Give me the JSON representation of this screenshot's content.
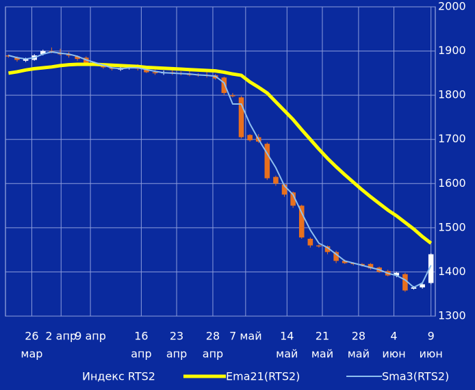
{
  "chart_data": {
    "type": "candlestick",
    "ylim": [
      1300,
      2000
    ],
    "yticks": [
      1300,
      1400,
      1500,
      1600,
      1700,
      1800,
      1900,
      2000
    ],
    "grid": true,
    "xlim": [
      -0.35,
      49.5
    ],
    "x_labels": [
      {
        "x": 2.7,
        "lines": [
          "26",
          "мар"
        ]
      },
      {
        "x": 6.1,
        "lines": [
          "2 апр"
        ]
      },
      {
        "x": 9.5,
        "lines": [
          "9 апр"
        ]
      },
      {
        "x": 15.4,
        "lines": [
          "16",
          "апр"
        ]
      },
      {
        "x": 19.5,
        "lines": [
          "23",
          "апр"
        ]
      },
      {
        "x": 23.7,
        "lines": [
          "28",
          "апр"
        ]
      },
      {
        "x": 27.5,
        "lines": [
          "7 май"
        ]
      },
      {
        "x": 32.3,
        "lines": [
          "14",
          "май"
        ]
      },
      {
        "x": 36.4,
        "lines": [
          "21",
          "май"
        ]
      },
      {
        "x": 40.6,
        "lines": [
          "28",
          "май"
        ]
      },
      {
        "x": 44.7,
        "lines": [
          "4",
          "июн"
        ]
      },
      {
        "x": 49,
        "lines": [
          "9",
          "июн"
        ]
      }
    ],
    "candles": {
      "name": "Индекс RTS2",
      "up_color": "#ffffff",
      "down_color": "#e8701e",
      "open": [
        1890,
        1885,
        1878,
        1880,
        1893,
        1900,
        1895,
        1892,
        1888,
        1885,
        1874,
        1868,
        1862,
        1858,
        1862,
        1866,
        1858,
        1852,
        1850,
        1852,
        1850,
        1848,
        1847,
        1846,
        1845,
        1840,
        1800,
        1795,
        1710,
        1705,
        1690,
        1615,
        1598,
        1580,
        1550,
        1475,
        1460,
        1458,
        1445,
        1425,
        1420,
        1418,
        1418,
        1410,
        1402,
        1392,
        1395,
        1362,
        1365,
        1375
      ],
      "high": [
        1892,
        1888,
        1885,
        1893,
        1903,
        1908,
        1905,
        1898,
        1890,
        1888,
        1876,
        1872,
        1866,
        1866,
        1870,
        1870,
        1862,
        1858,
        1856,
        1856,
        1854,
        1858,
        1850,
        1852,
        1848,
        1842,
        1805,
        1798,
        1712,
        1712,
        1693,
        1618,
        1600,
        1582,
        1552,
        1478,
        1462,
        1460,
        1448,
        1428,
        1422,
        1420,
        1420,
        1412,
        1405,
        1400,
        1398,
        1368,
        1375,
        1442
      ],
      "low": [
        1885,
        1876,
        1875,
        1878,
        1890,
        1895,
        1890,
        1885,
        1878,
        1870,
        1866,
        1860,
        1856,
        1855,
        1858,
        1856,
        1850,
        1846,
        1846,
        1846,
        1845,
        1843,
        1842,
        1840,
        1835,
        1800,
        1795,
        1702,
        1695,
        1692,
        1608,
        1595,
        1570,
        1545,
        1475,
        1455,
        1455,
        1440,
        1420,
        1418,
        1415,
        1412,
        1405,
        1398,
        1390,
        1388,
        1355,
        1360,
        1362,
        1372
      ],
      "close": [
        1888,
        1880,
        1882,
        1890,
        1900,
        1898,
        1893,
        1890,
        1882,
        1872,
        1870,
        1863,
        1860,
        1862,
        1865,
        1860,
        1852,
        1850,
        1852,
        1850,
        1848,
        1846,
        1845,
        1845,
        1838,
        1805,
        1798,
        1705,
        1698,
        1695,
        1612,
        1600,
        1575,
        1550,
        1478,
        1460,
        1458,
        1445,
        1425,
        1420,
        1418,
        1415,
        1408,
        1400,
        1392,
        1398,
        1358,
        1365,
        1372,
        1440
      ]
    },
    "series": [
      {
        "name": "Ema21(RTS2)",
        "color": "#ffff00",
        "width": 5,
        "values": [
          1850,
          1853,
          1857,
          1860,
          1862,
          1864,
          1867,
          1869,
          1870,
          1870,
          1870,
          1869,
          1868,
          1867,
          1866,
          1865,
          1863,
          1862,
          1861,
          1860,
          1859,
          1858,
          1857,
          1856,
          1855,
          1852,
          1848,
          1845,
          1830,
          1818,
          1805,
          1785,
          1765,
          1745,
          1722,
          1700,
          1678,
          1657,
          1638,
          1620,
          1603,
          1586,
          1570,
          1555,
          1540,
          1527,
          1512,
          1497,
          1480,
          1465
        ]
      },
      {
        "name": "Sma3(RTS2)",
        "color": "#8fc0f0",
        "width": 2,
        "values": [
          1890,
          1885,
          1882,
          1885,
          1893,
          1898,
          1895,
          1893,
          1888,
          1880,
          1874,
          1868,
          1862,
          1860,
          1862,
          1862,
          1858,
          1854,
          1851,
          1850,
          1849,
          1848,
          1846,
          1845,
          1843,
          1828,
          1780,
          1780,
          1735,
          1700,
          1668,
          1636,
          1595,
          1575,
          1534,
          1495,
          1465,
          1455,
          1440,
          1425,
          1420,
          1415,
          1410,
          1405,
          1397,
          1392,
          1382,
          1365,
          1375,
          1415
        ]
      }
    ]
  }
}
